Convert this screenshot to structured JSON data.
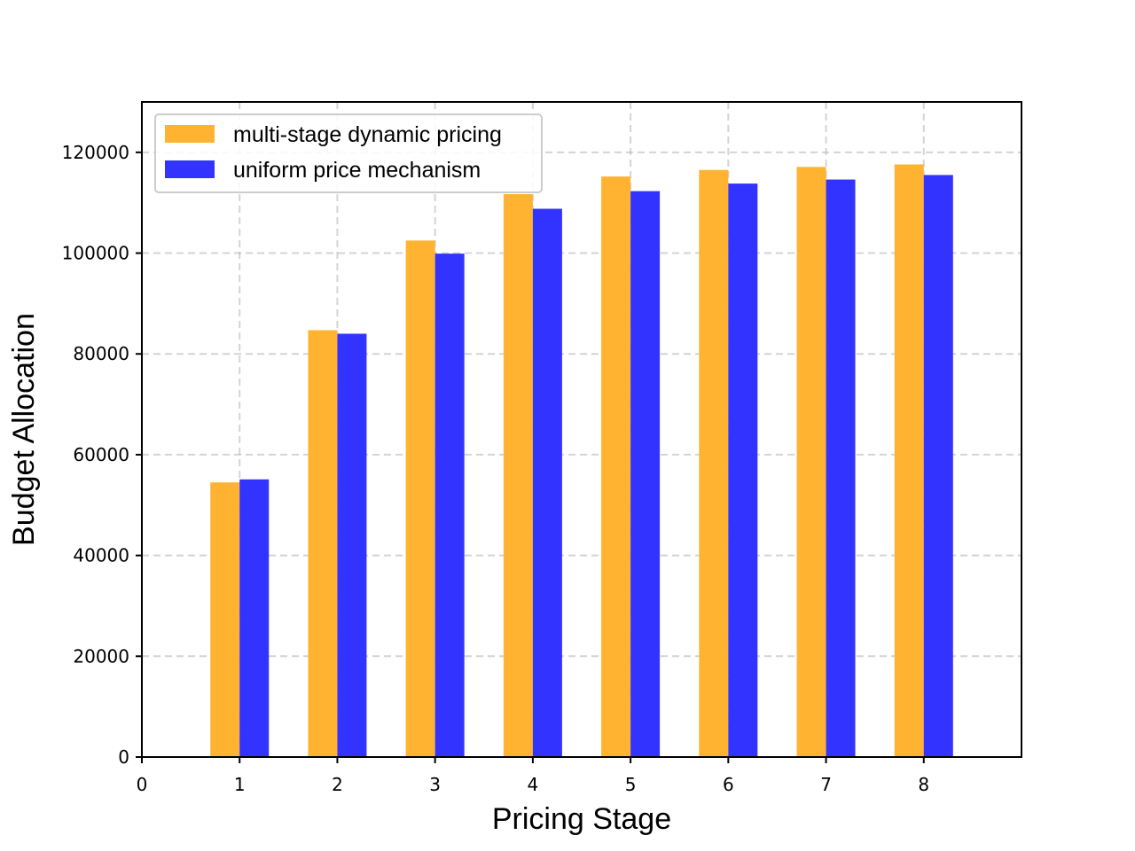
{
  "chart_data": {
    "type": "bar",
    "xlabel": "Pricing Stage",
    "ylabel": "Budget Allocation",
    "x_ticks": [
      0,
      1,
      2,
      3,
      4,
      5,
      6,
      7,
      8
    ],
    "y_ticks": [
      0,
      20000,
      40000,
      60000,
      80000,
      100000,
      120000
    ],
    "xlim": [
      0,
      9
    ],
    "ylim": [
      0,
      130000
    ],
    "grid": true,
    "legend_position": "upper-left",
    "categories": [
      1,
      2,
      3,
      4,
      5,
      6,
      7,
      8
    ],
    "series": [
      {
        "name": "multi-stage dynamic pricing",
        "color": "#FFB330",
        "values": [
          54500,
          84700,
          102500,
          111700,
          115200,
          116500,
          117100,
          117600
        ]
      },
      {
        "name": "uniform price mechanism",
        "color": "#3333FF",
        "values": [
          55100,
          84000,
          99900,
          108800,
          112300,
          113800,
          114600,
          115500
        ]
      }
    ]
  }
}
